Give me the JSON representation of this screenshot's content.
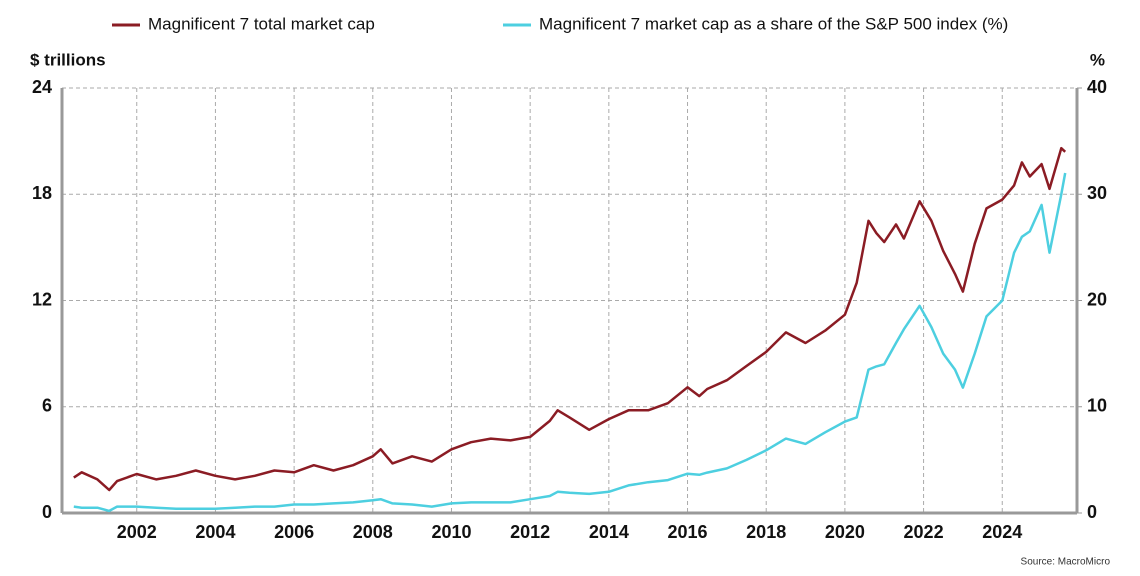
{
  "chart_data": {
    "type": "line",
    "y_label": "$ trillions",
    "y2_label": "%",
    "source": "Source: MacroMicro",
    "x": [
      2000.4,
      2000.6,
      2001.0,
      2001.3,
      2001.5,
      2002.0,
      2002.5,
      2003.0,
      2003.5,
      2004.0,
      2004.5,
      2005.0,
      2005.5,
      2006.0,
      2006.5,
      2007.0,
      2007.5,
      2008.0,
      2008.2,
      2008.5,
      2009.0,
      2009.5,
      2010.0,
      2010.5,
      2011.0,
      2011.5,
      2012.0,
      2012.5,
      2012.7,
      2013.0,
      2013.5,
      2014.0,
      2014.5,
      2015.0,
      2015.5,
      2016.0,
      2016.3,
      2016.5,
      2017.0,
      2017.5,
      2018.0,
      2018.5,
      2019.0,
      2019.5,
      2020.0,
      2020.3,
      2020.6,
      2020.8,
      2021.0,
      2021.3,
      2021.5,
      2021.9,
      2022.2,
      2022.5,
      2022.8,
      2023.0,
      2023.3,
      2023.6,
      2024.0,
      2024.3,
      2024.5,
      2024.7,
      2025.0,
      2025.2,
      2025.5,
      2025.6
    ],
    "series": [
      {
        "name": "Magnificent 7 total market cap",
        "color": "#8b1c24",
        "values": [
          2.0,
          2.3,
          1.9,
          1.3,
          1.8,
          2.2,
          1.9,
          2.1,
          2.4,
          2.1,
          1.9,
          2.1,
          2.4,
          2.3,
          2.7,
          2.4,
          2.7,
          3.2,
          3.6,
          2.8,
          3.2,
          2.9,
          3.6,
          4.0,
          4.2,
          4.1,
          4.3,
          5.2,
          5.8,
          5.4,
          4.7,
          5.3,
          5.8,
          5.8,
          6.2,
          7.1,
          6.6,
          7.0,
          7.5,
          8.3,
          9.1,
          10.2,
          9.6,
          10.3,
          11.2,
          13.0,
          16.5,
          15.8,
          15.3,
          16.3,
          15.5,
          17.6,
          16.5,
          14.8,
          13.5,
          12.5,
          15.2,
          17.2,
          17.7,
          18.5,
          19.8,
          19.0,
          19.7,
          18.3,
          20.6,
          20.4
        ]
      },
      {
        "name": "Magnificent 7 market cap as a share of the S&P 500 index (%)",
        "color": "#4dcfe0",
        "axis": "y2",
        "values": [
          0.6,
          0.5,
          0.5,
          0.2,
          0.6,
          0.6,
          0.5,
          0.4,
          0.4,
          0.4,
          0.5,
          0.6,
          0.6,
          0.8,
          0.8,
          0.9,
          1.0,
          1.2,
          1.3,
          0.9,
          0.8,
          0.6,
          0.9,
          1.0,
          1.0,
          1.0,
          1.3,
          1.6,
          2.0,
          1.9,
          1.8,
          2.0,
          2.6,
          2.9,
          3.1,
          3.7,
          3.6,
          3.8,
          4.2,
          5.0,
          5.9,
          7.0,
          6.5,
          7.6,
          8.6,
          9.0,
          13.5,
          13.8,
          14.0,
          16.0,
          17.3,
          19.5,
          17.5,
          15.0,
          13.5,
          11.8,
          15.0,
          18.5,
          20.0,
          24.5,
          26.0,
          26.5,
          29.0,
          24.5,
          30.0,
          32.0
        ]
      }
    ],
    "xlim": [
      2000.1,
      2025.9
    ],
    "xticks": [
      2002,
      2004,
      2006,
      2008,
      2010,
      2012,
      2014,
      2016,
      2018,
      2020,
      2022,
      2024
    ],
    "ylim": [
      0,
      24
    ],
    "yticks": [
      0,
      6,
      12,
      18,
      24
    ],
    "y2lim": [
      0,
      40
    ],
    "y2ticks": [
      0,
      10,
      20,
      30,
      40
    ],
    "grid": true
  }
}
